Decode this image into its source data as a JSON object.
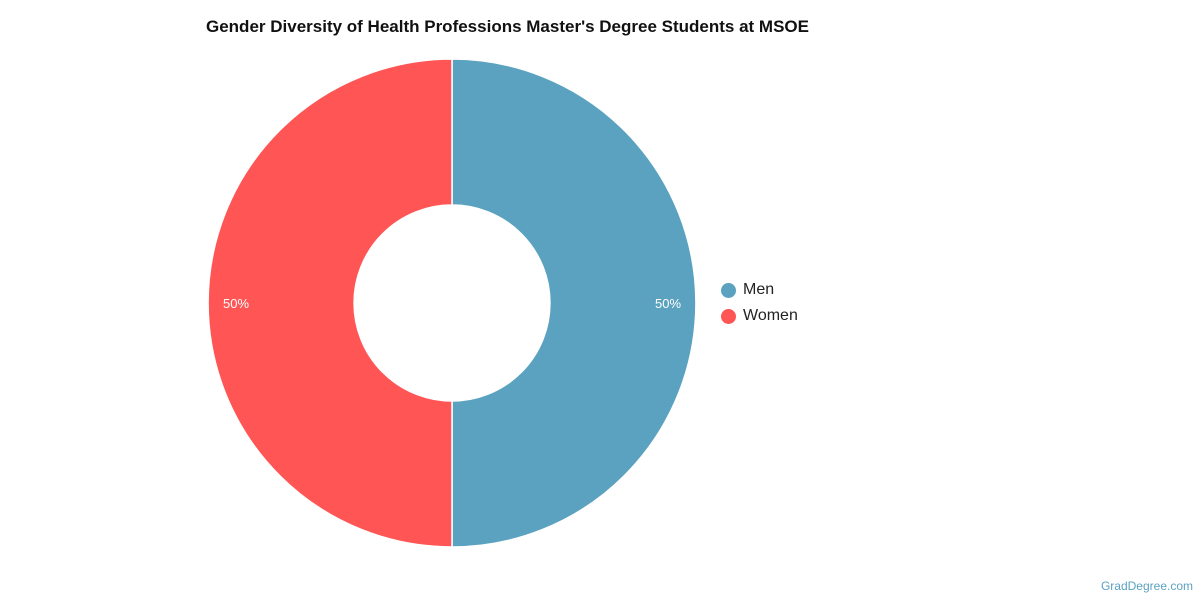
{
  "chart_data": {
    "type": "pie",
    "donut": true,
    "title": "Gender Diversity of Health Professions Master's Degree Students at MSOE",
    "categories": [
      "Men",
      "Women"
    ],
    "values": [
      50,
      50
    ],
    "data_labels": [
      "50%",
      "50%"
    ],
    "colors": [
      "#5ba2c0",
      "#ff5555"
    ],
    "legend_position": "right"
  },
  "credit": "GradDegree.com"
}
